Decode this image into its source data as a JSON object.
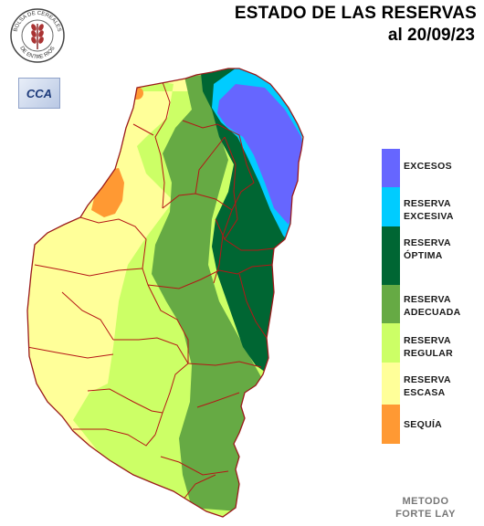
{
  "title": {
    "line1": "ESTADO DE LAS RESERVAS",
    "line2": "al 20/09/23"
  },
  "seal": {
    "top_text": "BOLSA DE CEREALES",
    "bottom_text": "DE ENTRE RIOS",
    "icon": "wheat-seal-icon"
  },
  "cca_logo": "CCA",
  "legend": [
    {
      "line1": "EXCESOS",
      "line2": "",
      "color": "#6666ff"
    },
    {
      "line1": "RESERVA",
      "line2": "EXCESIVA",
      "color": "#00ccff"
    },
    {
      "line1": "RESERVA",
      "line2": "ÓPTIMA",
      "color": "#006633"
    },
    {
      "line1": "RESERVA",
      "line2": "ADECUADA",
      "color": "#66aa44"
    },
    {
      "line1": "RESERVA",
      "line2": "REGULAR",
      "color": "#ccff66"
    },
    {
      "line1": "RESERVA",
      "line2": "ESCASA",
      "color": "#ffff99"
    },
    {
      "line1": "SEQUÍA",
      "line2": "",
      "color": "#ff9933"
    }
  ],
  "method": {
    "line1": "METODO",
    "line2": "FORTE LAY"
  }
}
